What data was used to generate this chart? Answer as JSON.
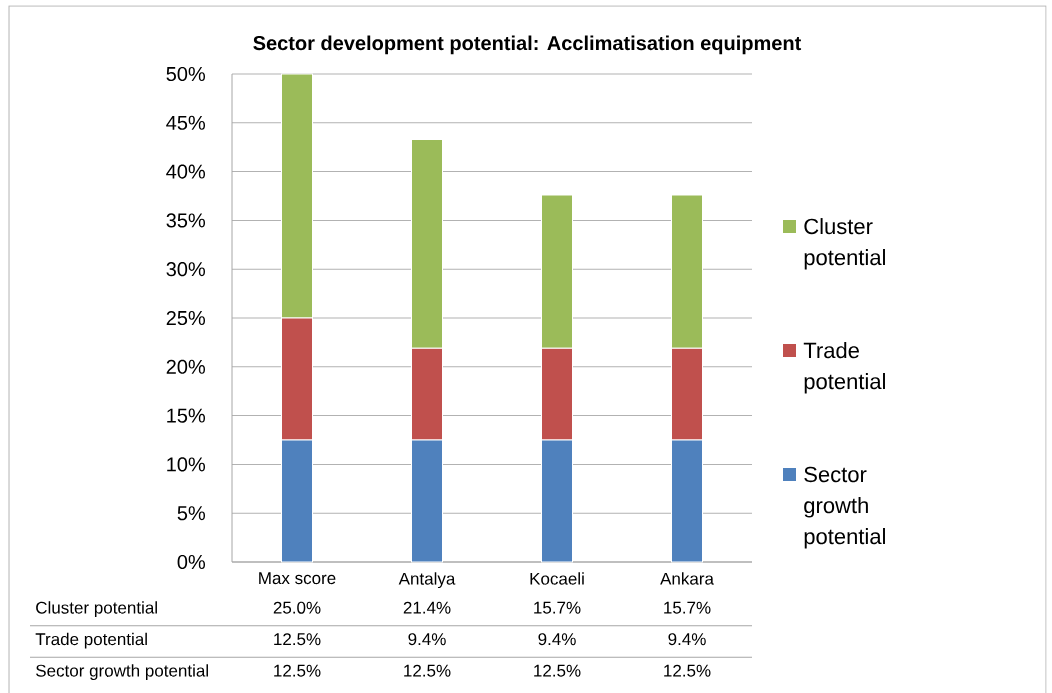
{
  "chart_data": {
    "type": "bar",
    "stacked": true,
    "title": "Sector development potential: Acclimatisation equipment",
    "categories": [
      "Max score",
      "Antalya",
      "Kocaeli",
      "Ankara"
    ],
    "series": [
      {
        "name": "Sector growth potential",
        "color": "#4f81bd",
        "values": [
          12.5,
          12.5,
          12.5,
          12.5
        ],
        "value_labels": [
          "12.5%",
          "12.5%",
          "12.5%",
          "12.5%"
        ]
      },
      {
        "name": "Trade potential",
        "color": "#c0504d",
        "values": [
          12.5,
          9.4,
          9.4,
          9.4
        ],
        "value_labels": [
          "12.5%",
          "9.4%",
          "9.4%",
          "9.4%"
        ]
      },
      {
        "name": "Cluster potential",
        "color": "#9bbb59",
        "values": [
          25.0,
          21.4,
          15.7,
          15.7
        ],
        "value_labels": [
          "25.0%",
          "21.4%",
          "15.7%",
          "15.7%"
        ]
      }
    ],
    "ylim": [
      0,
      50
    ],
    "yticks": [
      {
        "value": 0,
        "label": "0%"
      },
      {
        "value": 5,
        "label": "5%"
      },
      {
        "value": 10,
        "label": "10%"
      },
      {
        "value": 15,
        "label": "15%"
      },
      {
        "value": 20,
        "label": "20%"
      },
      {
        "value": 25,
        "label": "25%"
      },
      {
        "value": 30,
        "label": "30%"
      },
      {
        "value": 35,
        "label": "35%"
      },
      {
        "value": 40,
        "label": "40%"
      },
      {
        "value": 45,
        "label": "45%"
      },
      {
        "value": 50,
        "label": "50%"
      }
    ],
    "grid": "y",
    "legend": "right"
  }
}
